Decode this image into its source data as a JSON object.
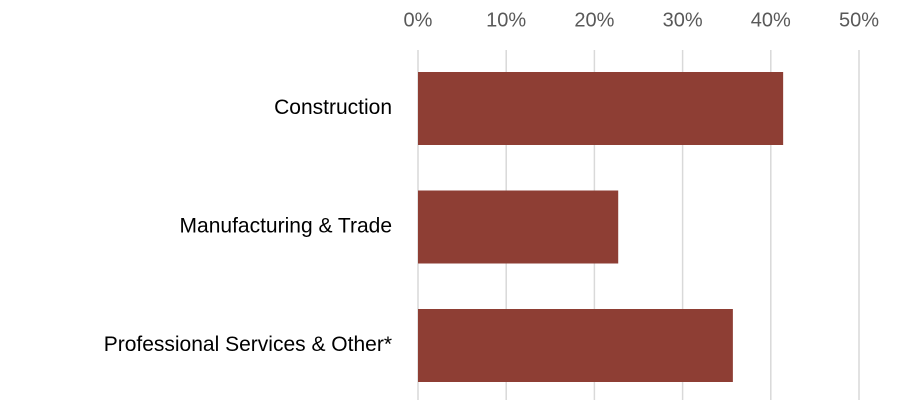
{
  "chart_data": {
    "type": "bar",
    "orientation": "horizontal",
    "categories": [
      "Construction",
      "Manufacturing & Trade",
      "Professional Services & Other*"
    ],
    "values": [
      41.4,
      22.7,
      35.7
    ],
    "color": "#8e3e34",
    "xlim": [
      0,
      50
    ],
    "xticks": [
      {
        "value": 0,
        "label": "0%"
      },
      {
        "value": 10,
        "label": "10%"
      },
      {
        "value": 20,
        "label": "20%"
      },
      {
        "value": 30,
        "label": "30%"
      },
      {
        "value": 40,
        "label": "40%"
      },
      {
        "value": 50,
        "label": "50%"
      }
    ],
    "grid": true
  }
}
